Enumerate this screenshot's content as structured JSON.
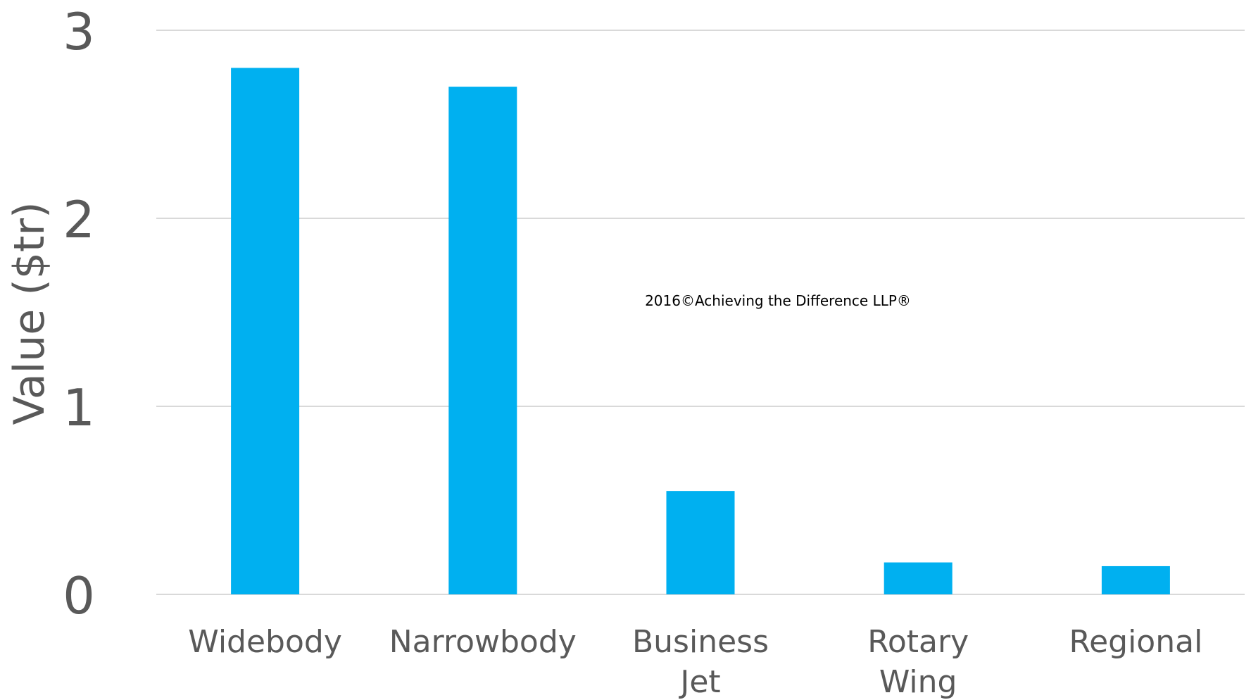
{
  "chart_data": {
    "type": "bar",
    "categories": [
      "Widebody",
      "Narrowbody",
      "Business Jet",
      "Rotary Wing",
      "Regional"
    ],
    "category_label_lines": [
      [
        "Widebody"
      ],
      [
        "Narrowbody"
      ],
      [
        "Business",
        "Jet"
      ],
      [
        "Rotary",
        "Wing"
      ],
      [
        "Regional"
      ]
    ],
    "values": [
      2.8,
      2.7,
      0.55,
      0.17,
      0.15
    ],
    "title": "",
    "xlabel": "",
    "ylabel": "Value ($tr)",
    "ylim": [
      0,
      3
    ],
    "yticks": [
      0,
      1,
      2,
      3
    ],
    "grid": true,
    "legend": "none",
    "bar_color": "#00B0F0",
    "annotation": "2016©Achieving the Difference LLP®"
  }
}
